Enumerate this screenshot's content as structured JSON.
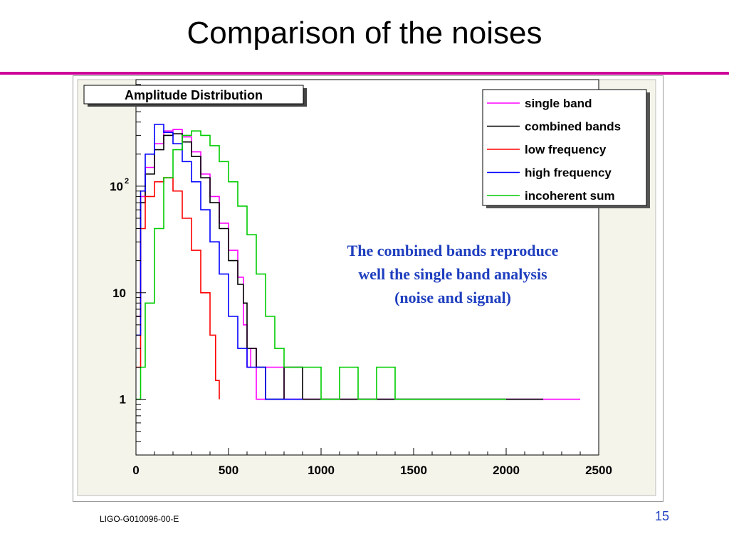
{
  "slide": {
    "title": "Comparison of the noises",
    "footer_left": "LIGO-G010096-00-E",
    "page_number": "15",
    "accent_color": "#cc0099",
    "page_number_color": "#1f3fbf"
  },
  "chart_data": {
    "type": "line",
    "title": "Amplitude Distribution",
    "y_scale": "log",
    "xlim": [
      0,
      2500
    ],
    "ylim": [
      0.3,
      1000
    ],
    "x_ticks": [
      0,
      500,
      1000,
      1500,
      2000,
      2500
    ],
    "y_tick_labels": [
      {
        "value": 1,
        "label": "1"
      },
      {
        "value": 10,
        "label": "10"
      },
      {
        "value": 100,
        "label": "10",
        "sup": "2"
      }
    ],
    "grid": false,
    "legend_position": "top-right",
    "annotation": "The combined bands reproduce well the single band analysis (noise and signal)",
    "annotation_lines": [
      "The combined bands reproduce",
      "well the single band analysis",
      "(noise and signal)"
    ],
    "annotation_color": "#1f3fbf",
    "series": [
      {
        "name": "single band",
        "color": "#ff00ff",
        "points": [
          [
            0,
            6
          ],
          [
            25,
            80
          ],
          [
            50,
            150
          ],
          [
            100,
            250
          ],
          [
            150,
            330
          ],
          [
            200,
            340
          ],
          [
            250,
            290
          ],
          [
            300,
            210
          ],
          [
            350,
            130
          ],
          [
            400,
            80
          ],
          [
            450,
            45
          ],
          [
            500,
            25
          ],
          [
            550,
            14
          ],
          [
            580,
            5
          ],
          [
            600,
            2
          ],
          [
            620,
            3
          ],
          [
            650,
            1
          ],
          [
            700,
            2
          ],
          [
            800,
            1
          ],
          [
            900,
            1
          ],
          [
            1000,
            1
          ],
          [
            1100,
            1
          ],
          [
            1200,
            1
          ],
          [
            1300,
            1
          ],
          [
            1400,
            1
          ],
          [
            1500,
            1
          ],
          [
            1600,
            1
          ],
          [
            1700,
            1
          ],
          [
            1800,
            1
          ],
          [
            1900,
            1
          ],
          [
            2000,
            1
          ],
          [
            2100,
            1
          ],
          [
            2200,
            1
          ],
          [
            2300,
            1
          ],
          [
            2400,
            1
          ]
        ]
      },
      {
        "name": "combined bands",
        "color": "#000000",
        "points": [
          [
            0,
            6
          ],
          [
            25,
            70
          ],
          [
            50,
            130
          ],
          [
            100,
            220
          ],
          [
            150,
            300
          ],
          [
            200,
            310
          ],
          [
            250,
            260
          ],
          [
            300,
            190
          ],
          [
            350,
            120
          ],
          [
            400,
            70
          ],
          [
            450,
            40
          ],
          [
            500,
            20
          ],
          [
            550,
            12
          ],
          [
            580,
            8
          ],
          [
            600,
            3
          ],
          [
            650,
            2
          ],
          [
            700,
            1
          ],
          [
            800,
            2
          ],
          [
            900,
            1
          ],
          [
            1000,
            1
          ],
          [
            1100,
            1
          ],
          [
            1200,
            1
          ],
          [
            1300,
            1
          ],
          [
            1400,
            1
          ],
          [
            1500,
            1
          ],
          [
            1600,
            1
          ],
          [
            1700,
            1
          ],
          [
            1800,
            1
          ],
          [
            1900,
            1
          ],
          [
            2000,
            1
          ],
          [
            2100,
            1
          ],
          [
            2200,
            1
          ]
        ]
      },
      {
        "name": "low frequency",
        "color": "#ff0000",
        "points": [
          [
            0,
            2
          ],
          [
            25,
            40
          ],
          [
            50,
            80
          ],
          [
            100,
            110
          ],
          [
            150,
            120
          ],
          [
            200,
            90
          ],
          [
            250,
            50
          ],
          [
            300,
            25
          ],
          [
            350,
            10
          ],
          [
            400,
            4
          ],
          [
            430,
            1.5
          ],
          [
            450,
            1
          ]
        ]
      },
      {
        "name": "high frequency",
        "color": "#0000ff",
        "points": [
          [
            0,
            4
          ],
          [
            25,
            90
          ],
          [
            50,
            200
          ],
          [
            100,
            380
          ],
          [
            150,
            320
          ],
          [
            200,
            250
          ],
          [
            250,
            170
          ],
          [
            300,
            110
          ],
          [
            350,
            60
          ],
          [
            400,
            30
          ],
          [
            450,
            15
          ],
          [
            500,
            6
          ],
          [
            550,
            3
          ],
          [
            600,
            2
          ],
          [
            700,
            1
          ],
          [
            800,
            1
          ],
          [
            900,
            1
          ]
        ]
      },
      {
        "name": "incoherent sum",
        "color": "#00cc00",
        "points": [
          [
            0,
            1
          ],
          [
            25,
            2
          ],
          [
            50,
            8
          ],
          [
            100,
            40
          ],
          [
            150,
            120
          ],
          [
            200,
            220
          ],
          [
            250,
            300
          ],
          [
            300,
            330
          ],
          [
            350,
            300
          ],
          [
            400,
            240
          ],
          [
            450,
            170
          ],
          [
            500,
            110
          ],
          [
            550,
            65
          ],
          [
            600,
            35
          ],
          [
            650,
            15
          ],
          [
            700,
            6
          ],
          [
            750,
            3
          ],
          [
            800,
            2
          ],
          [
            900,
            2
          ],
          [
            1000,
            1
          ],
          [
            1100,
            2
          ],
          [
            1200,
            1
          ],
          [
            1300,
            2
          ],
          [
            1400,
            1
          ],
          [
            1500,
            1
          ],
          [
            1600,
            1
          ],
          [
            1700,
            1
          ],
          [
            1800,
            1
          ],
          [
            1900,
            1
          ],
          [
            2000,
            1
          ]
        ]
      }
    ]
  }
}
